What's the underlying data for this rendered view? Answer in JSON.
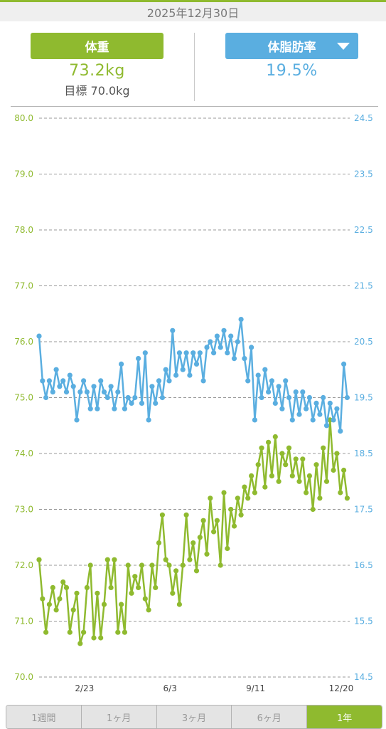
{
  "header": {
    "date": "2025年12月30日"
  },
  "weight": {
    "label": "体重",
    "value": "73.2kg",
    "goal": "目標 70.0kg"
  },
  "bodyfat": {
    "label": "体脂肪率",
    "value": "19.5%"
  },
  "colors": {
    "weight": "#8fba2f",
    "bodyfat": "#5aaee0",
    "grid": "#999999"
  },
  "icons": {
    "dropdown": "triangle-down-icon"
  },
  "tabs": [
    {
      "label": "1週間",
      "active": false
    },
    {
      "label": "1ヶ月",
      "active": false
    },
    {
      "label": "3ヶ月",
      "active": false
    },
    {
      "label": "6ヶ月",
      "active": false
    },
    {
      "label": "1年",
      "active": true
    }
  ],
  "chart_data": {
    "type": "line",
    "x_tick_labels": [
      "2/23",
      "6/3",
      "9/11",
      "12/20"
    ],
    "x_tick_dates": [
      "2025-02-23",
      "2025-06-03",
      "2025-09-11",
      "2025-12-20"
    ],
    "x_range": [
      "2025-01-01",
      "2025-12-30"
    ],
    "y_left": {
      "range": [
        70.0,
        80.0
      ],
      "ticks": [
        "70.0",
        "71.0",
        "72.0",
        "73.0",
        "74.0",
        "75.0",
        "76.0",
        "77.0",
        "78.0",
        "79.0",
        "80.0"
      ]
    },
    "y_right": {
      "range": [
        14.5,
        24.5
      ],
      "ticks": [
        "14.5",
        "15.5",
        "16.5",
        "17.5",
        "18.5",
        "19.5",
        "20.5",
        "21.5",
        "22.5",
        "23.5",
        "24.5"
      ]
    },
    "grid": true,
    "series": [
      {
        "axis": "left",
        "color": "#8fba2f",
        "points": [
          [
            "2025-01-01",
            72.1
          ],
          [
            "2025-01-05",
            71.4
          ],
          [
            "2025-01-09",
            70.8
          ],
          [
            "2025-01-13",
            71.3
          ],
          [
            "2025-01-17",
            71.6
          ],
          [
            "2025-01-21",
            71.2
          ],
          [
            "2025-01-25",
            71.4
          ],
          [
            "2025-01-29",
            71.7
          ],
          [
            "2025-02-02",
            71.6
          ],
          [
            "2025-02-06",
            70.8
          ],
          [
            "2025-02-10",
            71.2
          ],
          [
            "2025-02-14",
            71.5
          ],
          [
            "2025-02-18",
            70.6
          ],
          [
            "2025-02-22",
            70.8
          ],
          [
            "2025-02-26",
            71.6
          ],
          [
            "2025-03-02",
            72.0
          ],
          [
            "2025-03-06",
            70.7
          ],
          [
            "2025-03-10",
            71.5
          ],
          [
            "2025-03-14",
            70.7
          ],
          [
            "2025-03-18",
            71.3
          ],
          [
            "2025-03-22",
            72.1
          ],
          [
            "2025-03-26",
            71.6
          ],
          [
            "2025-03-30",
            72.1
          ],
          [
            "2025-04-03",
            70.8
          ],
          [
            "2025-04-07",
            71.3
          ],
          [
            "2025-04-11",
            70.8
          ],
          [
            "2025-04-15",
            72.0
          ],
          [
            "2025-04-19",
            71.5
          ],
          [
            "2025-04-23",
            71.8
          ],
          [
            "2025-04-27",
            71.6
          ],
          [
            "2025-05-01",
            72.0
          ],
          [
            "2025-05-05",
            71.4
          ],
          [
            "2025-05-09",
            71.2
          ],
          [
            "2025-05-13",
            72.0
          ],
          [
            "2025-05-17",
            71.6
          ],
          [
            "2025-05-21",
            72.4
          ],
          [
            "2025-05-25",
            72.9
          ],
          [
            "2025-05-29",
            72.1
          ],
          [
            "2025-06-02",
            72.0
          ],
          [
            "2025-06-06",
            71.5
          ],
          [
            "2025-06-10",
            71.9
          ],
          [
            "2025-06-14",
            71.3
          ],
          [
            "2025-06-18",
            72.0
          ],
          [
            "2025-06-22",
            72.9
          ],
          [
            "2025-06-26",
            72.1
          ],
          [
            "2025-06-30",
            72.4
          ],
          [
            "2025-07-04",
            71.9
          ],
          [
            "2025-07-08",
            72.5
          ],
          [
            "2025-07-12",
            72.8
          ],
          [
            "2025-07-16",
            72.2
          ],
          [
            "2025-07-20",
            73.2
          ],
          [
            "2025-07-24",
            72.6
          ],
          [
            "2025-07-28",
            72.8
          ],
          [
            "2025-08-01",
            72.0
          ],
          [
            "2025-08-05",
            73.3
          ],
          [
            "2025-08-09",
            72.3
          ],
          [
            "2025-08-13",
            73.0
          ],
          [
            "2025-08-17",
            72.7
          ],
          [
            "2025-08-21",
            73.2
          ],
          [
            "2025-08-25",
            72.9
          ],
          [
            "2025-08-29",
            73.4
          ],
          [
            "2025-09-02",
            73.2
          ],
          [
            "2025-09-06",
            73.6
          ],
          [
            "2025-09-10",
            73.3
          ],
          [
            "2025-09-14",
            73.8
          ],
          [
            "2025-09-18",
            74.1
          ],
          [
            "2025-09-22",
            73.4
          ],
          [
            "2025-09-26",
            74.2
          ],
          [
            "2025-09-30",
            73.6
          ],
          [
            "2025-10-04",
            74.3
          ],
          [
            "2025-10-08",
            73.5
          ],
          [
            "2025-10-12",
            74.0
          ],
          [
            "2025-10-16",
            73.8
          ],
          [
            "2025-10-20",
            74.1
          ],
          [
            "2025-10-24",
            73.6
          ],
          [
            "2025-10-28",
            73.9
          ],
          [
            "2025-11-01",
            73.5
          ],
          [
            "2025-11-05",
            73.9
          ],
          [
            "2025-11-09",
            73.3
          ],
          [
            "2025-11-13",
            73.6
          ],
          [
            "2025-11-17",
            73.0
          ],
          [
            "2025-11-21",
            73.8
          ],
          [
            "2025-11-25",
            73.2
          ],
          [
            "2025-11-29",
            74.1
          ],
          [
            "2025-12-03",
            73.5
          ],
          [
            "2025-12-07",
            74.6
          ],
          [
            "2025-12-11",
            73.7
          ],
          [
            "2025-12-15",
            74.0
          ],
          [
            "2025-12-19",
            73.3
          ],
          [
            "2025-12-23",
            73.7
          ],
          [
            "2025-12-27",
            73.2
          ]
        ]
      },
      {
        "axis": "right",
        "color": "#5aaee0",
        "points": [
          [
            "2025-01-01",
            20.6
          ],
          [
            "2025-01-05",
            19.8
          ],
          [
            "2025-01-09",
            19.5
          ],
          [
            "2025-01-13",
            19.8
          ],
          [
            "2025-01-17",
            19.6
          ],
          [
            "2025-01-21",
            20.0
          ],
          [
            "2025-01-25",
            19.7
          ],
          [
            "2025-01-29",
            19.8
          ],
          [
            "2025-02-02",
            19.6
          ],
          [
            "2025-02-06",
            19.9
          ],
          [
            "2025-02-10",
            19.7
          ],
          [
            "2025-02-14",
            19.1
          ],
          [
            "2025-02-18",
            19.6
          ],
          [
            "2025-02-22",
            19.8
          ],
          [
            "2025-02-26",
            19.6
          ],
          [
            "2025-03-02",
            19.3
          ],
          [
            "2025-03-06",
            19.7
          ],
          [
            "2025-03-10",
            19.3
          ],
          [
            "2025-03-14",
            19.8
          ],
          [
            "2025-03-18",
            19.6
          ],
          [
            "2025-03-22",
            19.5
          ],
          [
            "2025-03-26",
            19.7
          ],
          [
            "2025-03-30",
            19.3
          ],
          [
            "2025-04-03",
            19.6
          ],
          [
            "2025-04-07",
            20.1
          ],
          [
            "2025-04-11",
            19.3
          ],
          [
            "2025-04-15",
            19.5
          ],
          [
            "2025-04-19",
            19.4
          ],
          [
            "2025-04-23",
            19.5
          ],
          [
            "2025-04-27",
            20.2
          ],
          [
            "2025-05-01",
            19.4
          ],
          [
            "2025-05-05",
            20.3
          ],
          [
            "2025-05-09",
            19.1
          ],
          [
            "2025-05-13",
            19.7
          ],
          [
            "2025-05-17",
            19.4
          ],
          [
            "2025-05-21",
            19.8
          ],
          [
            "2025-05-25",
            19.5
          ],
          [
            "2025-05-29",
            20.0
          ],
          [
            "2025-06-02",
            19.8
          ],
          [
            "2025-06-06",
            20.7
          ],
          [
            "2025-06-10",
            19.9
          ],
          [
            "2025-06-14",
            20.3
          ],
          [
            "2025-06-18",
            20.0
          ],
          [
            "2025-06-22",
            20.3
          ],
          [
            "2025-06-26",
            19.9
          ],
          [
            "2025-06-30",
            20.3
          ],
          [
            "2025-07-04",
            20.1
          ],
          [
            "2025-07-08",
            20.3
          ],
          [
            "2025-07-12",
            19.8
          ],
          [
            "2025-07-16",
            20.4
          ],
          [
            "2025-07-20",
            20.5
          ],
          [
            "2025-07-24",
            20.3
          ],
          [
            "2025-07-28",
            20.6
          ],
          [
            "2025-08-01",
            20.4
          ],
          [
            "2025-08-05",
            20.7
          ],
          [
            "2025-08-09",
            20.3
          ],
          [
            "2025-08-13",
            20.6
          ],
          [
            "2025-08-17",
            20.2
          ],
          [
            "2025-08-21",
            20.5
          ],
          [
            "2025-08-25",
            20.9
          ],
          [
            "2025-08-29",
            20.2
          ],
          [
            "2025-09-02",
            19.8
          ],
          [
            "2025-09-06",
            20.4
          ],
          [
            "2025-09-10",
            19.1
          ],
          [
            "2025-09-14",
            19.9
          ],
          [
            "2025-09-18",
            19.5
          ],
          [
            "2025-09-22",
            20.0
          ],
          [
            "2025-09-26",
            19.6
          ],
          [
            "2025-09-30",
            19.8
          ],
          [
            "2025-10-04",
            19.4
          ],
          [
            "2025-10-08",
            19.7
          ],
          [
            "2025-10-12",
            19.3
          ],
          [
            "2025-10-16",
            19.8
          ],
          [
            "2025-10-20",
            19.5
          ],
          [
            "2025-10-24",
            19.1
          ],
          [
            "2025-10-28",
            19.6
          ],
          [
            "2025-11-01",
            19.2
          ],
          [
            "2025-11-05",
            19.6
          ],
          [
            "2025-11-09",
            19.3
          ],
          [
            "2025-11-13",
            19.5
          ],
          [
            "2025-11-17",
            19.1
          ],
          [
            "2025-11-21",
            19.4
          ],
          [
            "2025-11-25",
            19.2
          ],
          [
            "2025-11-29",
            19.5
          ],
          [
            "2025-12-03",
            19.0
          ],
          [
            "2025-12-07",
            19.4
          ],
          [
            "2025-12-11",
            19.1
          ],
          [
            "2025-12-15",
            19.3
          ],
          [
            "2025-12-19",
            18.9
          ],
          [
            "2025-12-23",
            20.1
          ],
          [
            "2025-12-27",
            19.5
          ]
        ]
      }
    ]
  }
}
